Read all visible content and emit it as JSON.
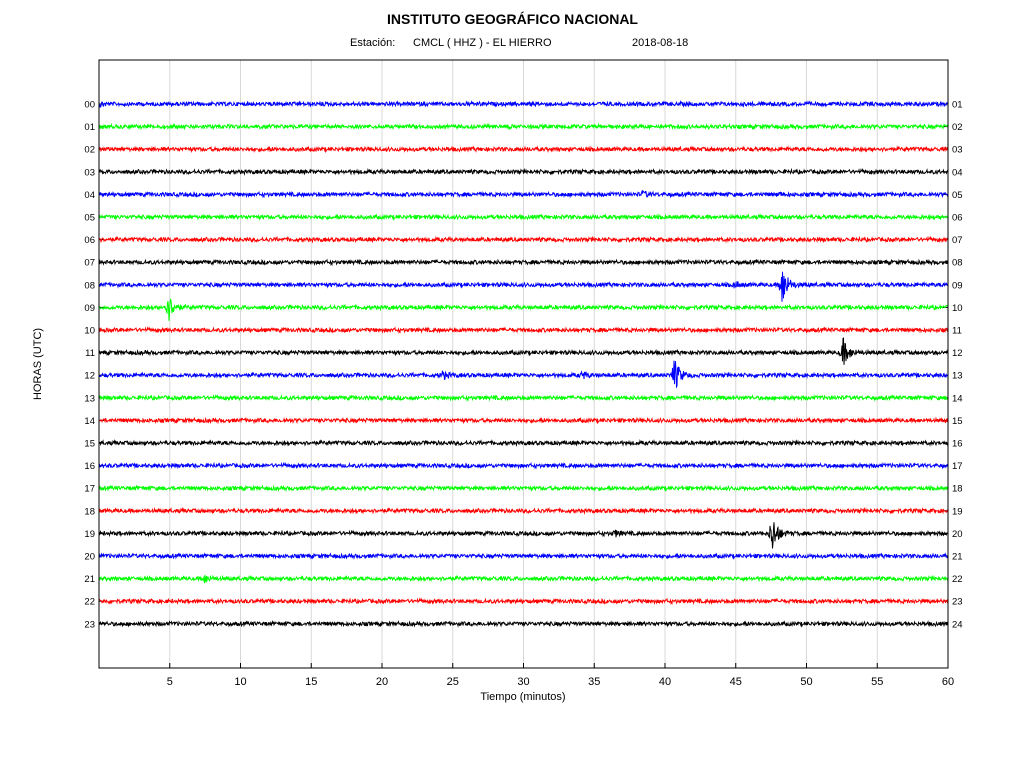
{
  "header": {
    "title": "INSTITUTO GEOGRÁFICO NACIONAL",
    "station_label": "Estación:",
    "station": "CMCL ( HHZ ) - EL HIERRO",
    "date": "2018-08-18"
  },
  "colors": {
    "blue": "#0000ff",
    "green": "#00ff00",
    "red": "#ff0000",
    "black": "#000000"
  },
  "chart_data": {
    "type": "line",
    "title": "INSTITUTO GEOGRÁFICO NACIONAL",
    "xlabel": "Tiempo (minutos)",
    "ylabel": "HORAS (UTC)",
    "xlim": [
      0,
      60
    ],
    "x_ticks": [
      5,
      10,
      15,
      20,
      25,
      30,
      35,
      40,
      45,
      50,
      55,
      60
    ],
    "grid": true,
    "traces": [
      {
        "left": "00",
        "right": "01",
        "color": "blue",
        "events": [
          {
            "t": 0.1,
            "amp": 0.4
          }
        ]
      },
      {
        "left": "01",
        "right": "02",
        "color": "green",
        "events": []
      },
      {
        "left": "02",
        "right": "03",
        "color": "red",
        "events": []
      },
      {
        "left": "03",
        "right": "04",
        "color": "black",
        "events": []
      },
      {
        "left": "04",
        "right": "05",
        "color": "blue",
        "events": [
          {
            "t": 38.5,
            "amp": 0.5
          },
          {
            "t": 48.0,
            "amp": 0.3
          }
        ]
      },
      {
        "left": "05",
        "right": "06",
        "color": "green",
        "events": []
      },
      {
        "left": "06",
        "right": "07",
        "color": "red",
        "events": []
      },
      {
        "left": "07",
        "right": "08",
        "color": "black",
        "events": []
      },
      {
        "left": "08",
        "right": "09",
        "color": "blue",
        "events": [
          {
            "t": 45.0,
            "amp": 0.5
          },
          {
            "t": 48.3,
            "amp": 4.2
          }
        ]
      },
      {
        "left": "09",
        "right": "10",
        "color": "green",
        "events": [
          {
            "t": 4.9,
            "amp": 3.0
          }
        ]
      },
      {
        "left": "10",
        "right": "11",
        "color": "red",
        "events": []
      },
      {
        "left": "11",
        "right": "12",
        "color": "black",
        "events": [
          {
            "t": 52.6,
            "amp": 3.0
          }
        ]
      },
      {
        "left": "12",
        "right": "13",
        "color": "blue",
        "events": [
          {
            "t": 24.3,
            "amp": 0.8
          },
          {
            "t": 34.2,
            "amp": 0.6
          },
          {
            "t": 40.7,
            "amp": 3.4
          }
        ]
      },
      {
        "left": "13",
        "right": "14",
        "color": "green",
        "events": []
      },
      {
        "left": "14",
        "right": "15",
        "color": "red",
        "events": []
      },
      {
        "left": "15",
        "right": "16",
        "color": "black",
        "events": []
      },
      {
        "left": "16",
        "right": "17",
        "color": "blue",
        "events": []
      },
      {
        "left": "17",
        "right": "18",
        "color": "green",
        "events": []
      },
      {
        "left": "18",
        "right": "19",
        "color": "red",
        "events": []
      },
      {
        "left": "19",
        "right": "20",
        "color": "black",
        "events": [
          {
            "t": 36.5,
            "amp": 0.5
          },
          {
            "t": 47.6,
            "amp": 4.0
          }
        ]
      },
      {
        "left": "20",
        "right": "21",
        "color": "blue",
        "events": []
      },
      {
        "left": "21",
        "right": "22",
        "color": "green",
        "events": [
          {
            "t": 7.5,
            "amp": 0.8
          }
        ]
      },
      {
        "left": "22",
        "right": "23",
        "color": "red",
        "events": []
      },
      {
        "left": "23",
        "right": "24",
        "color": "black",
        "events": []
      }
    ]
  }
}
